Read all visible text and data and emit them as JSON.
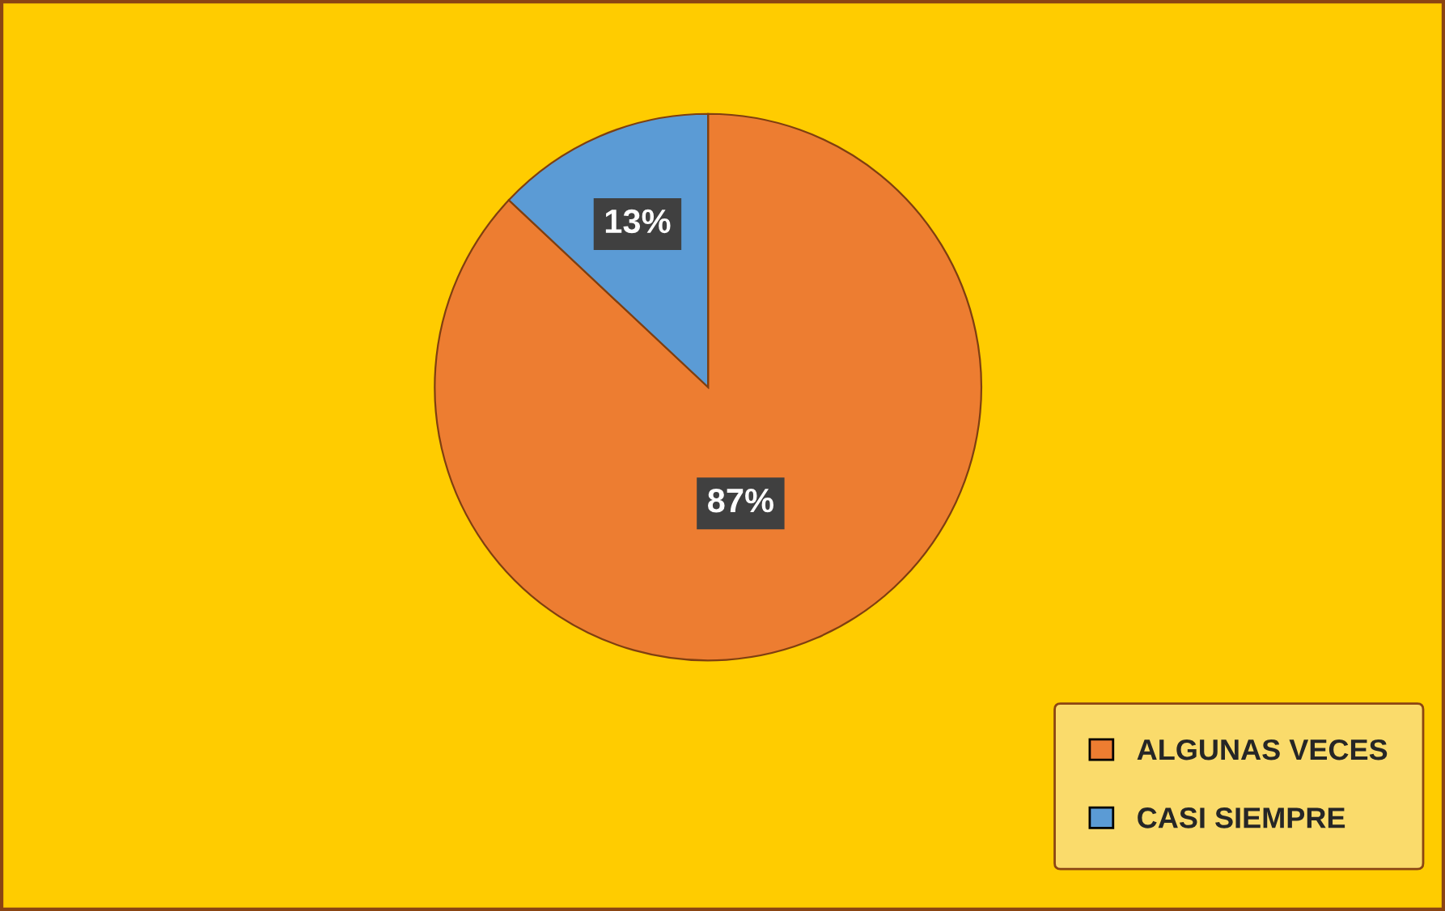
{
  "chart_data": {
    "type": "pie",
    "categories": [
      "ALGUNAS VECES",
      "CASI SIEMPRE"
    ],
    "values": [
      87,
      13
    ],
    "colors": [
      "#ed7d31",
      "#5b9bd5"
    ],
    "value_labels": [
      "87%",
      "13%"
    ],
    "legend": "bottom right"
  }
}
